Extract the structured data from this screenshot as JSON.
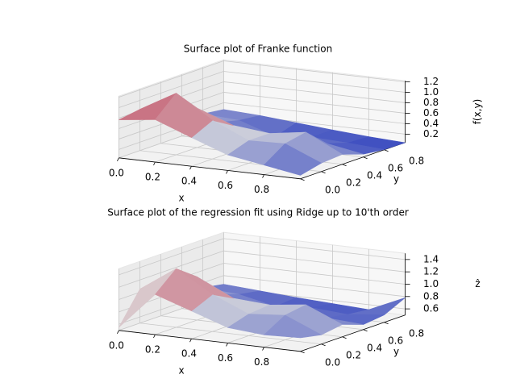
{
  "chart_data": [
    {
      "type": "surface",
      "title": "Surface plot of Franke function",
      "x_label": "x",
      "y_label": "y",
      "z_label": "f(x,y)",
      "x": [
        0,
        0.2,
        0.4,
        0.6,
        0.8,
        1.0
      ],
      "y": [
        0,
        0.2,
        0.4,
        0.6,
        0.8,
        1.0
      ],
      "z": [
        [
          0.767,
          0.851,
          0.588,
          0.337,
          0.224,
          0.107
        ],
        [
          0.829,
          1.218,
          0.778,
          0.471,
          0.491,
          0.202
        ],
        [
          0.609,
          0.794,
          0.54,
          0.468,
          0.572,
          0.23
        ],
        [
          0.402,
          0.378,
          0.273,
          0.233,
          0.217,
          0.095
        ],
        [
          0.323,
          0.281,
          0.05,
          0.119,
          0.09,
          0.045
        ],
        [
          0.27,
          0.235,
          0.176,
          0.12,
          0.07,
          0.036
        ]
      ],
      "xlim": [
        0,
        1
      ],
      "ylim": [
        0,
        1
      ],
      "zlim": [
        0.04,
        1.22
      ],
      "xticks": [
        {
          "value": 0,
          "label": "0.0"
        },
        0.2,
        0.4,
        0.6,
        0.8
      ],
      "yticks": [
        {
          "value": 0,
          "label": "0.0"
        },
        0.2,
        0.4,
        0.6,
        0.8
      ],
      "zticks": [
        0.2,
        0.4,
        0.6,
        0.8,
        {
          "value": 1,
          "label": "1.0"
        },
        1.2
      ],
      "colors": [
        "#3b4cc0",
        "#dddddd",
        "#b40426"
      ],
      "grid": true
    },
    {
      "type": "surface",
      "title": "Surface plot of the regression fit using Ridge up to 10'th order",
      "x_label": "x",
      "y_label": "y",
      "z_label": "ẑ",
      "x": [
        0,
        0.2,
        0.4,
        0.6,
        0.8,
        1.0
      ],
      "y": [
        0,
        0.2,
        0.4,
        0.6,
        0.8,
        1.0
      ],
      "z": [
        [
          0.55,
          1.15,
          0.95,
          0.75,
          0.7,
          0.72
        ],
        [
          1.05,
          1.45,
          1.1,
          0.85,
          0.9,
          0.65
        ],
        [
          0.95,
          1.2,
          0.92,
          0.88,
          0.95,
          0.7
        ],
        [
          0.8,
          0.8,
          0.7,
          0.65,
          0.62,
          0.58
        ],
        [
          0.72,
          0.68,
          0.55,
          0.6,
          0.56,
          0.62
        ],
        [
          0.66,
          0.62,
          0.58,
          0.55,
          0.52,
          0.78
        ]
      ],
      "xlim": [
        0,
        1
      ],
      "ylim": [
        0,
        1
      ],
      "zlim": [
        0.5,
        1.5
      ],
      "xticks": [
        {
          "value": 0,
          "label": "0.0"
        },
        0.2,
        0.4,
        0.6,
        0.8
      ],
      "yticks": [
        {
          "value": 0,
          "label": "0.0"
        },
        0.2,
        0.4,
        0.6,
        0.8
      ],
      "zticks": [
        0.6,
        0.8,
        {
          "value": 1,
          "label": "1.0"
        },
        1.2,
        1.4
      ],
      "colors": [
        "#3b4cc0",
        "#dddddd",
        "#b40426"
      ],
      "grid": true
    }
  ]
}
